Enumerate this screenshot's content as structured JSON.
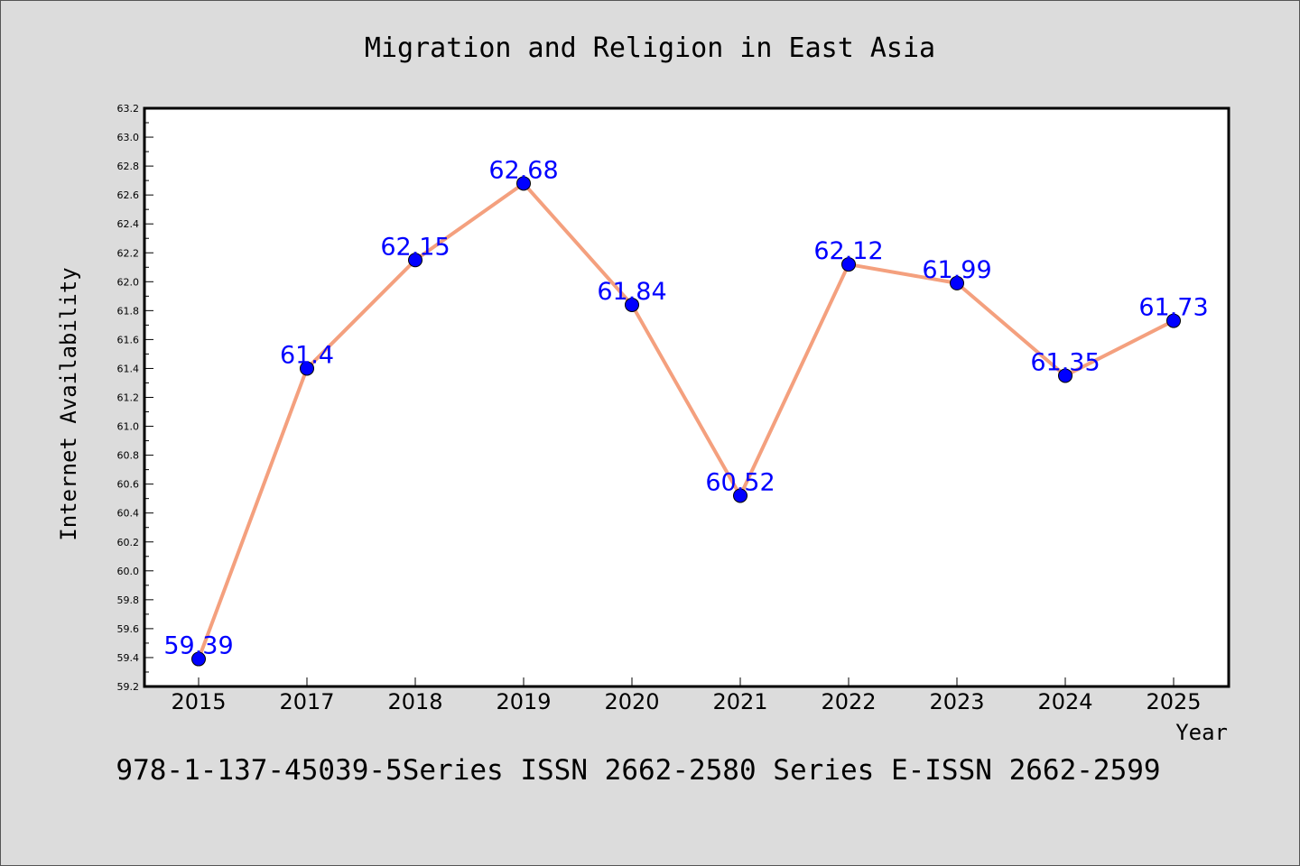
{
  "chart_data": {
    "type": "line",
    "title": "Migration and Religion in East Asia",
    "xlabel": "Year",
    "ylabel": "Internet Availability",
    "categories": [
      "2015",
      "2017",
      "2018",
      "2019",
      "2020",
      "2021",
      "2022",
      "2023",
      "2024",
      "2025"
    ],
    "series": [
      {
        "values": [
          59.39,
          61.4,
          62.15,
          62.68,
          61.84,
          60.52,
          62.12,
          61.99,
          61.35,
          61.73
        ],
        "data_labels": [
          "59.39",
          "61.4",
          "62.15",
          "62.68",
          "61.84",
          "60.52",
          "62.12",
          "61.99",
          "61.35",
          "61.73"
        ],
        "line_color": "#f4a07e",
        "marker_color": "#0000ff"
      }
    ],
    "ylim": [
      59.2,
      63.2
    ],
    "yticks": [
      "59.2",
      "59.4",
      "59.6",
      "59.8",
      "60.0",
      "60.2",
      "60.4",
      "60.6",
      "60.8",
      "61.0",
      "61.2",
      "61.4",
      "61.6",
      "61.8",
      "62.0",
      "62.2",
      "62.4",
      "62.6",
      "62.8",
      "63.0",
      "63.2"
    ],
    "grid": false,
    "legend": "none"
  },
  "footer": {
    "text": "978-1-137-45039-5Series ISSN 2662-2580 Series E-ISSN 2662-2599"
  },
  "colors": {
    "background": "#dcdcdc",
    "plot_background": "#ffffff",
    "line": "#f4a07e",
    "marker": "#0000ff",
    "label": "#0000ff"
  }
}
